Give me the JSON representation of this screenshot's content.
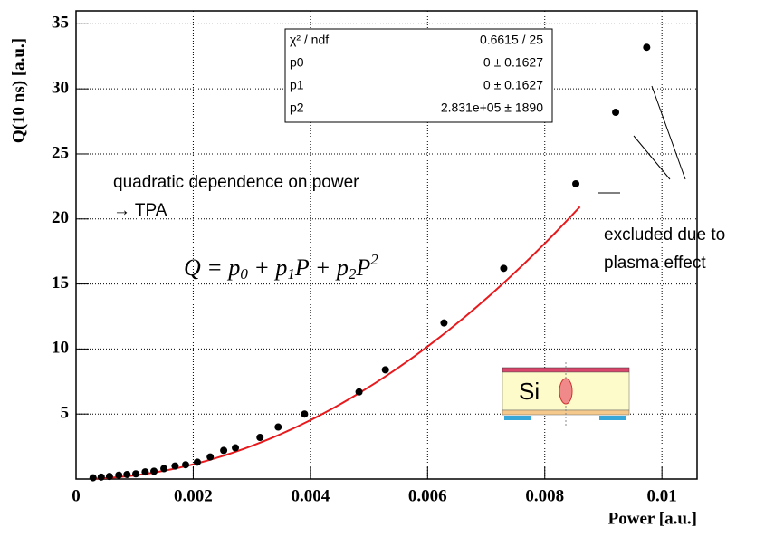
{
  "chart_data": {
    "type": "scatter",
    "x_label": "Power [a.u.]",
    "y_label": "Q(10 ns) [a.u.]",
    "xlim": [
      0,
      0.0106
    ],
    "ylim": [
      0,
      36
    ],
    "xticks": [
      0,
      0.002,
      0.004,
      0.006,
      0.008,
      0.01
    ],
    "yticks": [
      5,
      10,
      15,
      20,
      25,
      30,
      35
    ],
    "grid": true,
    "color": "#000000",
    "series": [
      {
        "x": [
          0.00029,
          0.00043,
          0.00057,
          0.00073,
          0.00087,
          0.00102,
          0.00118,
          0.00133,
          0.0015,
          0.00169,
          0.00187,
          0.00207,
          0.00229,
          0.00252,
          0.00272,
          0.00314,
          0.00345,
          0.0039,
          0.00483,
          0.00528,
          0.00628,
          0.0073
        ],
        "values": [
          0.1,
          0.15,
          0.2,
          0.3,
          0.35,
          0.4,
          0.55,
          0.6,
          0.8,
          1.0,
          1.1,
          1.3,
          1.7,
          2.2,
          2.4,
          3.2,
          4.0,
          5.0,
          6.7,
          8.4,
          12.0,
          16.2
        ]
      },
      {
        "x": [
          0.00853,
          0.00921,
          0.00974
        ],
        "values": [
          22.7,
          28.2,
          33.2
        ]
      }
    ],
    "fit": {
      "color": "#e8191c",
      "coefficients": [
        0,
        0,
        283100
      ],
      "xrange": [
        0.0003,
        0.0086
      ]
    },
    "stats": [
      [
        "χ² / ndf",
        "0.6615 / 25"
      ],
      [
        "p0",
        "0 ± 0.1627"
      ],
      [
        "p1",
        "0 ± 0.1627"
      ],
      [
        "p2",
        "2.831e+05 ±  1890"
      ]
    ],
    "annotations": {
      "tpa_line1": "quadratic dependence on power",
      "tpa_line2": "→ TPA",
      "formula": [
        {
          "text": "Q = p",
          "pos": "base"
        },
        {
          "text": "0",
          "pos": "sub"
        },
        {
          "text": " + p",
          "pos": "base"
        },
        {
          "text": "1",
          "pos": "sub"
        },
        {
          "text": "P + p",
          "pos": "base"
        },
        {
          "text": "2",
          "pos": "sub"
        },
        {
          "text": "P",
          "pos": "base"
        },
        {
          "text": "2",
          "pos": "sup"
        }
      ],
      "excluded_line1": "excluded due to",
      "excluded_line2": "plasma effect",
      "si_label": "Si"
    }
  }
}
